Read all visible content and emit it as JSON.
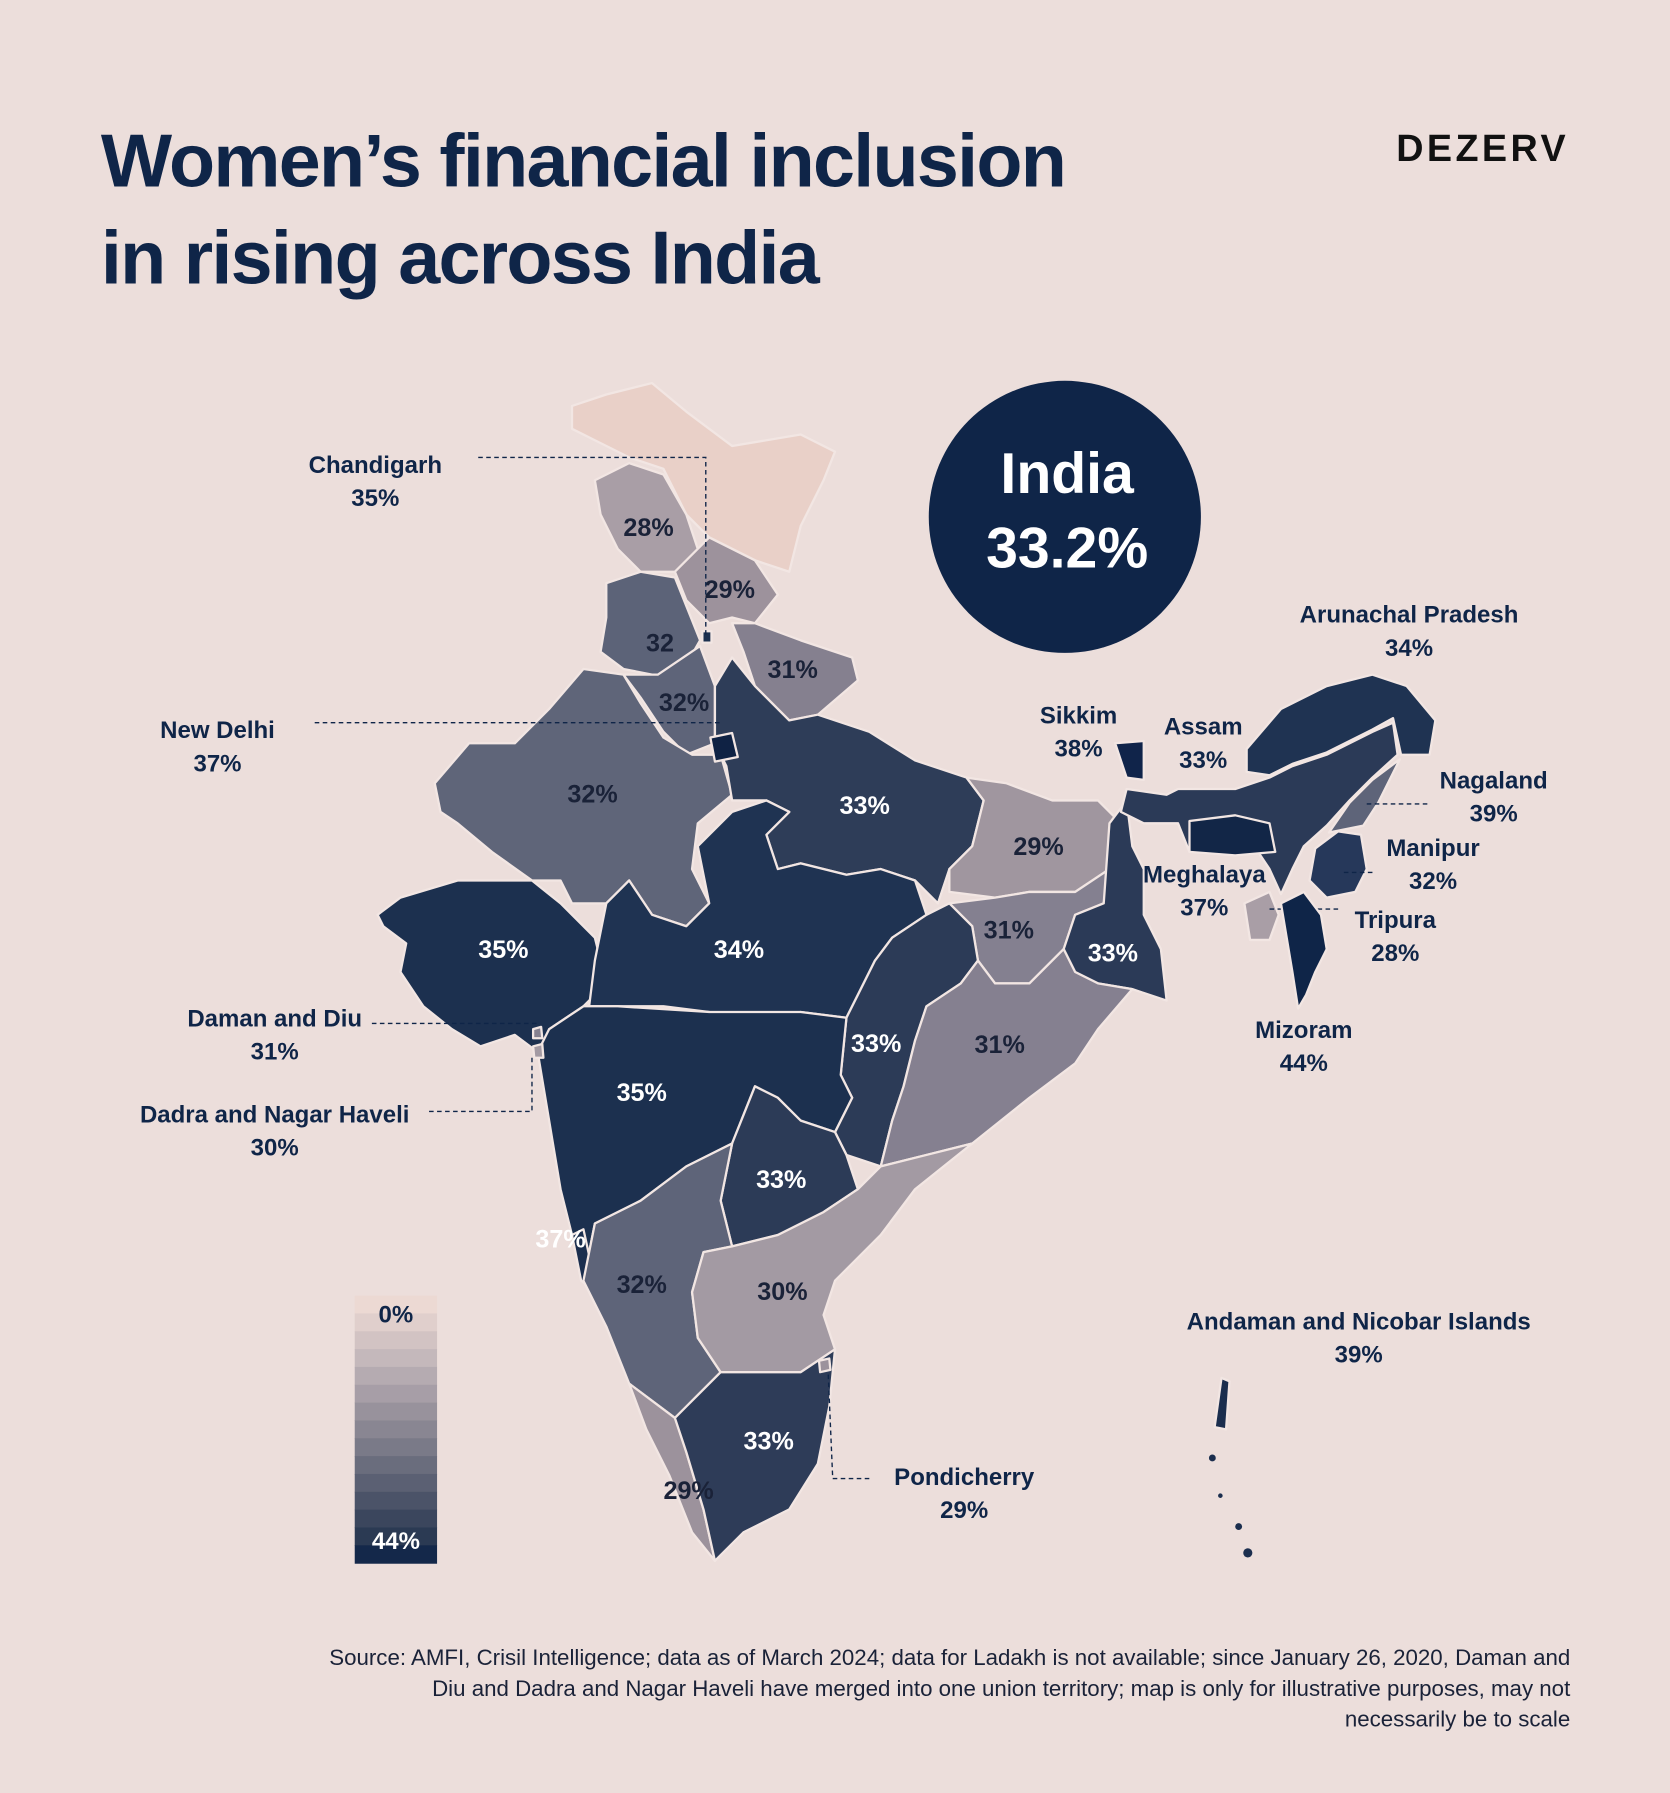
{
  "header": {
    "title_lines": [
      "Women’s financial inclusion",
      "in rising across India"
    ],
    "brand": "DEZERV"
  },
  "badge": {
    "label": "India",
    "value": 33.2,
    "value_label": "33.2%"
  },
  "regions": [
    {
      "label": "28%",
      "value": 28,
      "color": "#a99ea6"
    },
    {
      "label": "29%",
      "value": 29,
      "color": "#9d929c"
    },
    {
      "label": "32",
      "value": 32,
      "color": "#5c6378"
    },
    {
      "label": "32%",
      "value": 32,
      "color": "#5e6479"
    },
    {
      "label": "31%",
      "value": 31,
      "color": "#85808f"
    },
    {
      "label": "32%",
      "value": 32,
      "color": "#5f6579"
    },
    {
      "label": "33%",
      "value": 33,
      "color": "#2e3d58"
    },
    {
      "label": "29%",
      "value": 29,
      "color": "#a0969f"
    },
    {
      "label": "31%",
      "value": 31,
      "color": "#848090"
    },
    {
      "label": "33%",
      "value": 33,
      "color": "#2b3a57"
    },
    {
      "label": "35%",
      "value": 35,
      "color": "#1c304f"
    },
    {
      "label": "34%",
      "value": 34,
      "color": "#1f3352"
    },
    {
      "label": "33%",
      "value": 33,
      "color": "#2c3b57"
    },
    {
      "label": "31%",
      "value": 31,
      "color": "#858090"
    },
    {
      "label": "35%",
      "value": 35,
      "color": "#1c304f"
    },
    {
      "label": "37%",
      "value": 37,
      "color": "#1b2e4e"
    },
    {
      "label": "33%",
      "value": 33,
      "color": "#2c3b57"
    },
    {
      "label": "32%",
      "value": 32,
      "color": "#5e6479"
    },
    {
      "label": "30%",
      "value": 30,
      "color": "#a39aa3"
    },
    {
      "label": "29%",
      "value": 29,
      "color": "#9c929c"
    },
    {
      "label": "33%",
      "value": 33,
      "color": "#2e3c58"
    }
  ],
  "callouts": [
    {
      "name": "Chandigarh",
      "label": "35%",
      "value": 35,
      "color": "#1c304f"
    },
    {
      "name": "New Delhi",
      "label": "37%",
      "value": 37,
      "color": "#0f2244"
    },
    {
      "name": "Sikkim",
      "label": "38%",
      "value": 38,
      "color": "#10244a"
    },
    {
      "name": "Assam",
      "label": "33%",
      "value": 33,
      "color": "#2b3a57"
    },
    {
      "name": "Arunachal Pradesh",
      "label": "34%",
      "value": 34,
      "color": "#1f3352"
    },
    {
      "name": "Nagaland",
      "label": "39%",
      "value": 39,
      "color": "#5e6479"
    },
    {
      "name": "Manipur",
      "label": "32%",
      "value": 32,
      "color": "#26385a"
    },
    {
      "name": "Meghalaya",
      "label": "37%",
      "value": 37,
      "color": "#122647"
    },
    {
      "name": "Tripura",
      "label": "28%",
      "value": 28,
      "color": "#a99ea6"
    },
    {
      "name": "Mizoram",
      "label": "44%",
      "value": 44,
      "color": "#0f2548"
    },
    {
      "name": "Daman and Diu",
      "label": "31%",
      "value": 31,
      "color": "#85808f"
    },
    {
      "name": "Dadra and Nagar Haveli",
      "label": "30%",
      "value": 30,
      "color": "#a39aa3"
    },
    {
      "name": "Pondicherry",
      "label": "29%",
      "value": 29,
      "color": "#9c929c"
    },
    {
      "name": "Andaman and Nicobar Islands",
      "label": "39%",
      "value": 39,
      "color": "#1b2e4e"
    }
  ],
  "legend": {
    "min": {
      "value": 0,
      "label": "0%"
    },
    "max": {
      "value": 44,
      "label": "44%"
    },
    "colors": [
      "#ecd9d3",
      "#e0cfcc",
      "#d2c3c3",
      "#c4b8bb",
      "#b5abb1",
      "#a79ea7",
      "#98929c",
      "#898692",
      "#7a7a88",
      "#6a6d7d",
      "#5b6073",
      "#4b5368",
      "#3b465d",
      "#2b3a53",
      "#14284a"
    ]
  },
  "source_lines": [
    "Source: AMFI, Crisil Intelligence; data as of March 2024; data for Ladakh is not available; since January 26, 2020, Daman and",
    "Diu and Dadra and Nagar Haveli have merged into one union territory; map is only for illustrative purposes, may not",
    "necessarily be to scale"
  ]
}
